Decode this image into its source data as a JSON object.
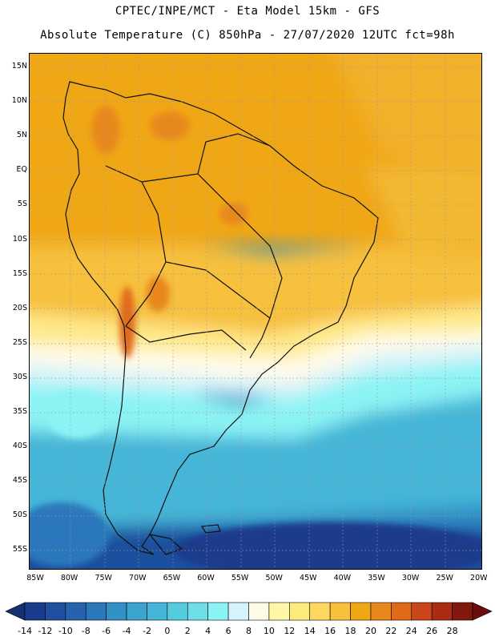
{
  "title": {
    "line1": "CPTEC/INPE/MCT -  Eta Model 15km - GFS",
    "line2": "Absolute Temperature (C) 850hPa - 27/07/2020 12UTC fct=98h"
  },
  "map": {
    "lat_labels": [
      "15N",
      "10N",
      "5N",
      "EQ",
      "5S",
      "10S",
      "15S",
      "20S",
      "25S",
      "30S",
      "35S",
      "40S",
      "45S",
      "50S",
      "55S"
    ],
    "lon_labels": [
      "85W",
      "80W",
      "75W",
      "70W",
      "65W",
      "60W",
      "55W",
      "50W",
      "45W",
      "40W",
      "35W",
      "30W",
      "25W",
      "20W"
    ],
    "region_color_levels": {
      "north_tropics": "16-18",
      "andes_highlands": "18-20",
      "subtropics": "12-16",
      "temperate_band": "6-10",
      "southern_ocean": "-2-4",
      "far_south": "-14 to -6"
    }
  },
  "colorbar": {
    "labels": [
      "-14",
      "-12",
      "-10",
      "-8",
      "-6",
      "-4",
      "-2",
      "0",
      "2",
      "4",
      "6",
      "8",
      "10",
      "12",
      "14",
      "16",
      "18",
      "20",
      "22",
      "24",
      "26",
      "28"
    ],
    "colors": [
      "#1b3b8b",
      "#1f4f9e",
      "#2563ad",
      "#2b78bb",
      "#3390c6",
      "#3aa4cf",
      "#45b6d8",
      "#55cbe0",
      "#6edfe9",
      "#8cf3f4",
      "#d5f3fa",
      "#fffbe9",
      "#fff7a8",
      "#feeb7e",
      "#fdd760",
      "#f7c03d",
      "#f0a716",
      "#e8881c",
      "#e06a1a",
      "#c9471a",
      "#aa2d13",
      "#82190f"
    ],
    "under_color": "#15306e",
    "over_color": "#6a0d0b"
  }
}
